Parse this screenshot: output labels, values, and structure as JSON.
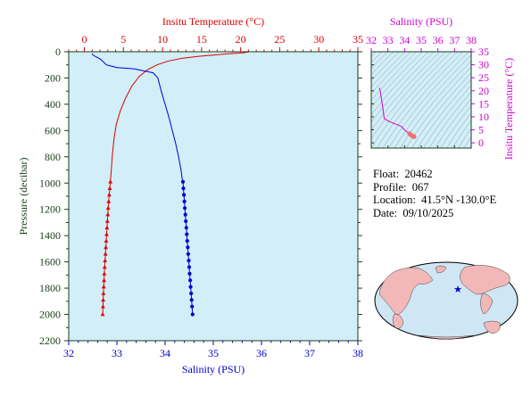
{
  "float_info": {
    "float_label": "Float:",
    "float_id": "20462",
    "profile_label": "Profile:",
    "profile_id": "067",
    "location_label": "Location:",
    "location": "41.5°N  -130.0°E",
    "date_label": "Date:",
    "date": "09/10/2025"
  },
  "colors": {
    "temperature": "#e00000",
    "salinity": "#0000d0",
    "ts": "#d000d0",
    "plot_bg": "#d2eef8",
    "axis": "#1a3d1a"
  },
  "chart_data": [
    {
      "type": "line",
      "title": "",
      "ylabel": "Pressure (decibar)",
      "ylim": [
        2200,
        0
      ],
      "y_ticks": [
        "0",
        "200",
        "400",
        "600",
        "800",
        "1000",
        "1200",
        "1400",
        "1600",
        "1800",
        "2000",
        "2200"
      ],
      "y_tick_values": [
        0,
        200,
        400,
        600,
        800,
        1000,
        1200,
        1400,
        1600,
        1800,
        2000,
        2200
      ],
      "top_axis": {
        "label": "Insitu Temperature (°C)",
        "range": [
          -2,
          35
        ],
        "ticks": [
          "0",
          "5",
          "10",
          "15",
          "20",
          "25",
          "30",
          "35"
        ],
        "tick_values": [
          0,
          5,
          10,
          15,
          20,
          25,
          30,
          35
        ]
      },
      "bottom_axis": {
        "label": "Salinity (PSU)",
        "range": [
          32,
          38
        ],
        "ticks": [
          "32",
          "33",
          "34",
          "35",
          "36",
          "37",
          "38"
        ],
        "tick_values": [
          32,
          33,
          34,
          35,
          36,
          37,
          38
        ]
      },
      "grid": false,
      "series": [
        {
          "quantity": "temperature",
          "axis": "top",
          "line": [
            [
              21.1,
              0
            ],
            [
              20.3,
              8
            ],
            [
              18.5,
              15
            ],
            [
              16.5,
              25
            ],
            [
              14.5,
              35
            ],
            [
              12.5,
              50
            ],
            [
              10.8,
              70
            ],
            [
              9.3,
              100
            ],
            [
              8.0,
              140
            ],
            [
              7.0,
              190
            ],
            [
              6.1,
              260
            ],
            [
              5.3,
              350
            ],
            [
              4.6,
              450
            ],
            [
              4.1,
              550
            ],
            [
              3.8,
              660
            ],
            [
              3.6,
              780
            ],
            [
              3.45,
              900
            ],
            [
              3.35,
              980
            ]
          ],
          "markers": [
            [
              3.33,
              990
            ],
            [
              3.25,
              1040
            ],
            [
              3.18,
              1090
            ],
            [
              3.12,
              1140
            ],
            [
              3.05,
              1190
            ],
            [
              3.0,
              1240
            ],
            [
              2.95,
              1290
            ],
            [
              2.9,
              1340
            ],
            [
              2.85,
              1390
            ],
            [
              2.8,
              1440
            ],
            [
              2.75,
              1490
            ],
            [
              2.7,
              1540
            ],
            [
              2.65,
              1590
            ],
            [
              2.6,
              1640
            ],
            [
              2.56,
              1690
            ],
            [
              2.52,
              1740
            ],
            [
              2.48,
              1790
            ],
            [
              2.44,
              1840
            ],
            [
              2.41,
              1890
            ],
            [
              2.38,
              1940
            ],
            [
              2.35,
              2000
            ]
          ]
        },
        {
          "quantity": "salinity",
          "axis": "bottom",
          "line": [
            [
              32.48,
              15
            ],
            [
              32.52,
              30
            ],
            [
              32.6,
              45
            ],
            [
              32.67,
              60
            ],
            [
              32.78,
              100
            ],
            [
              33.0,
              120
            ],
            [
              33.35,
              130
            ],
            [
              33.75,
              160
            ],
            [
              33.85,
              200
            ],
            [
              33.92,
              300
            ],
            [
              34.0,
              400
            ],
            [
              34.08,
              500
            ],
            [
              34.15,
              600
            ],
            [
              34.22,
              700
            ],
            [
              34.28,
              800
            ],
            [
              34.33,
              900
            ],
            [
              34.36,
              980
            ]
          ],
          "markers": [
            [
              34.37,
              990
            ],
            [
              34.38,
              1040
            ],
            [
              34.39,
              1090
            ],
            [
              34.4,
              1140
            ],
            [
              34.41,
              1190
            ],
            [
              34.42,
              1240
            ],
            [
              34.43,
              1290
            ],
            [
              34.44,
              1340
            ],
            [
              34.45,
              1390
            ],
            [
              34.46,
              1440
            ],
            [
              34.47,
              1490
            ],
            [
              34.48,
              1540
            ],
            [
              34.49,
              1590
            ],
            [
              34.5,
              1640
            ],
            [
              34.51,
              1690
            ],
            [
              34.52,
              1740
            ],
            [
              34.53,
              1790
            ],
            [
              34.54,
              1840
            ],
            [
              34.55,
              1890
            ],
            [
              34.56,
              1940
            ],
            [
              34.57,
              2000
            ]
          ]
        }
      ]
    },
    {
      "type": "line",
      "title": "",
      "xlabel": "Salinity (PSU)",
      "ylabel": "Insitu Temperature (°C)",
      "xlim": [
        32,
        38
      ],
      "ylim": [
        -2,
        35
      ],
      "x_ticks": [
        "32",
        "33",
        "34",
        "35",
        "36",
        "37",
        "38"
      ],
      "x_tick_values": [
        32,
        33,
        34,
        35,
        36,
        37,
        38
      ],
      "y_ticks": [
        "0",
        "5",
        "10",
        "15",
        "20",
        "25",
        "30",
        "35"
      ],
      "y_tick_values": [
        0,
        5,
        10,
        15,
        20,
        25,
        30,
        35
      ],
      "density_contours": true,
      "series": [
        {
          "quantity": "ts",
          "points": [
            [
              32.48,
              21.1
            ],
            [
              32.52,
              20.5
            ],
            [
              32.6,
              17.5
            ],
            [
              32.67,
              14.5
            ],
            [
              32.78,
              9.3
            ],
            [
              33.0,
              8.5
            ],
            [
              33.35,
              7.5
            ],
            [
              33.75,
              6.5
            ],
            [
              33.85,
              6.0
            ],
            [
              34.0,
              5.0
            ],
            [
              34.15,
              4.2
            ],
            [
              34.3,
              3.5
            ],
            [
              34.4,
              2.9
            ],
            [
              34.5,
              2.6
            ],
            [
              34.57,
              2.35
            ]
          ]
        }
      ]
    }
  ]
}
